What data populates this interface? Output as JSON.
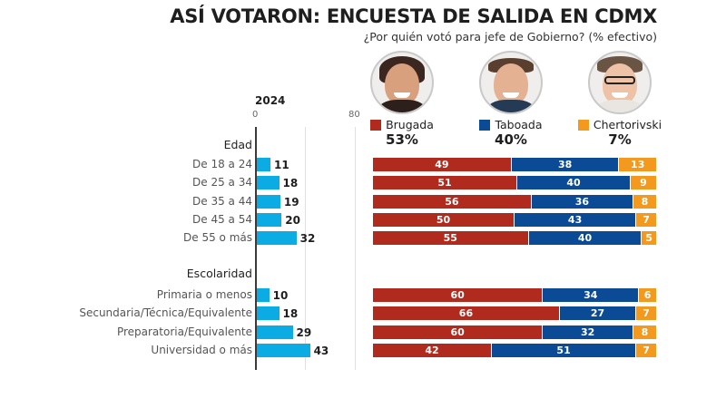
{
  "header": {
    "title": "ASÍ VOTARON: ENCUESTA DE SALIDA EN CDMX",
    "subtitle": "¿Por quién votó para jefe de Gobierno? (% efectivo)"
  },
  "candidates": [
    {
      "name": "Brugada",
      "total": "53%",
      "color": "#b02a1e",
      "photo": "candidate-photo-brugada"
    },
    {
      "name": "Taboada",
      "total": "40%",
      "color": "#0b4a94",
      "photo": "candidate-photo-taboada"
    },
    {
      "name": "Chertorivski",
      "total": "7%",
      "color": "#f39a1e",
      "photo": "candidate-photo-chertorivski"
    }
  ],
  "chart_data": [
    {
      "type": "bar",
      "orientation": "horizontal",
      "title": "2024",
      "xlabel": "",
      "ylabel": "",
      "xlim": [
        0,
        80
      ],
      "xticks": [
        "0",
        "80"
      ],
      "grid": true,
      "bar_color": "#0aace3",
      "groups": [
        {
          "label": "Edad",
          "categories": [
            "De 18 a 24",
            "De 25 a 34",
            "De 35 a 44",
            "De 45 a 54",
            "De 55 o más"
          ],
          "values": [
            11,
            18,
            19,
            20,
            32
          ]
        },
        {
          "label": "Escolaridad",
          "categories": [
            "Primaria o menos",
            "Secundaria/Técnica/Equivalente",
            "Preparatoria/Equivalente",
            "Universidad o más"
          ],
          "values": [
            10,
            18,
            29,
            43
          ]
        }
      ]
    },
    {
      "type": "bar",
      "orientation": "horizontal",
      "stacked": true,
      "title": "¿Por quién votó para jefe de Gobierno? (% efectivo)",
      "legend": "top",
      "xlim": [
        0,
        100
      ],
      "series_names": [
        "Brugada",
        "Taboada",
        "Chertorivski"
      ],
      "series_colors": [
        "#b02a1e",
        "#0b4a94",
        "#f39a1e"
      ],
      "groups": [
        {
          "label": "Edad",
          "categories": [
            "De 18 a 24",
            "De 25 a 34",
            "De 35 a 44",
            "De 45 a 54",
            "De 55 o más"
          ],
          "series": [
            {
              "name": "Brugada",
              "values": [
                49,
                51,
                56,
                50,
                55
              ]
            },
            {
              "name": "Taboada",
              "values": [
                38,
                40,
                36,
                43,
                40
              ]
            },
            {
              "name": "Chertorivski",
              "values": [
                13,
                9,
                8,
                7,
                5
              ]
            }
          ]
        },
        {
          "label": "Escolaridad",
          "categories": [
            "Primaria o menos",
            "Secundaria/Técnica/Equivalente",
            "Preparatoria/Equivalente",
            "Universidad o más"
          ],
          "series": [
            {
              "name": "Brugada",
              "values": [
                60,
                66,
                60,
                42
              ]
            },
            {
              "name": "Taboada",
              "values": [
                34,
                27,
                32,
                51
              ]
            },
            {
              "name": "Chertorivski",
              "values": [
                6,
                7,
                8,
                7
              ]
            }
          ]
        }
      ]
    }
  ]
}
